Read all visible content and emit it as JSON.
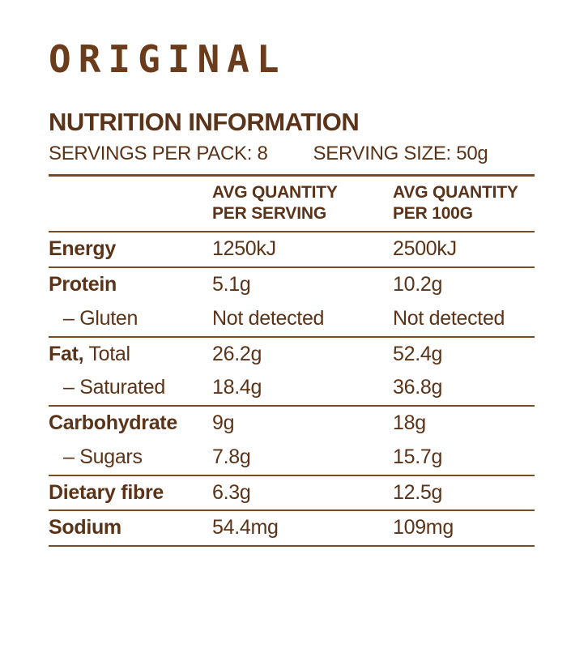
{
  "title": "ORIGINAL",
  "heading": "NUTRITION INFORMATION",
  "servings_per_pack": "SERVINGS PER PACK: 8",
  "serving_size": "SERVING SIZE: 50g",
  "colors": {
    "text_brown": "#5b3318",
    "title_brown": "#6b3c1c",
    "rule_brown": "#7a4a22",
    "background": "#ffffff"
  },
  "table": {
    "columns": {
      "col_label": "",
      "col_per_serving": "AVG QUANTITY\nPER SERVING",
      "col_per_100g": "AVG QUANTITY\nPER 100G"
    },
    "rows": [
      {
        "label_bold": "Energy",
        "label_rest": "",
        "per_serving": "1250kJ",
        "per_100g": "2500kJ"
      },
      {
        "label_bold": "Protein",
        "label_rest": "",
        "per_serving": "5.1g",
        "per_100g": "10.2g"
      },
      {
        "label_bold": "",
        "label_rest": "– Gluten",
        "per_serving": "Not detected",
        "per_100g": "Not detected"
      },
      {
        "label_bold": "Fat,",
        "label_rest": " Total",
        "per_serving": "26.2g",
        "per_100g": "52.4g"
      },
      {
        "label_bold": "",
        "label_rest": "– Saturated",
        "per_serving": "18.4g",
        "per_100g": "36.8g"
      },
      {
        "label_bold": "Carbohydrate",
        "label_rest": "",
        "per_serving": "9g",
        "per_100g": "18g"
      },
      {
        "label_bold": "",
        "label_rest": "– Sugars",
        "per_serving": "7.8g",
        "per_100g": "15.7g"
      },
      {
        "label_bold": "Dietary fibre",
        "label_rest": "",
        "per_serving": "6.3g",
        "per_100g": "12.5g"
      },
      {
        "label_bold": "Sodium",
        "label_rest": "",
        "per_serving": "54.4mg",
        "per_100g": "109mg"
      }
    ]
  }
}
